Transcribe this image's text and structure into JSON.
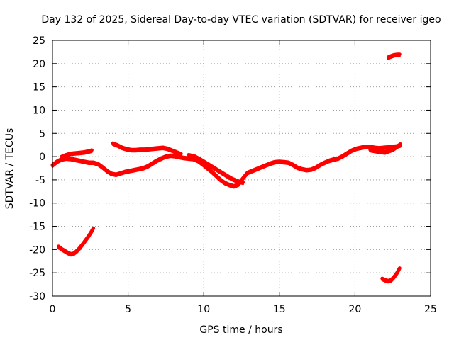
{
  "chart_data": {
    "type": "line",
    "title": "Day 132 of 2025, Sidereal Day-to-day VTEC variation (SDTVAR) for receiver igeo",
    "xlabel": "GPS time / hours",
    "ylabel": "SDTVAR / TECUs",
    "xlim": [
      0,
      25
    ],
    "ylim": [
      -30,
      25
    ],
    "x_ticks": [
      0,
      5,
      10,
      15,
      20,
      25
    ],
    "y_ticks": [
      25,
      20,
      15,
      10,
      5,
      0,
      -5,
      -10,
      -15,
      -20,
      -25,
      -30
    ],
    "grid": true,
    "series_color": "#ff0000",
    "series": [
      {
        "name": "main-trace",
        "x": [
          0.0,
          0.3,
          0.6,
          0.9,
          1.2,
          1.5,
          1.8,
          2.1,
          2.4,
          2.7,
          3.0,
          3.3,
          3.6,
          3.9,
          4.2,
          4.5,
          4.8,
          5.1,
          5.4,
          5.7,
          6.0,
          6.3,
          6.6,
          6.9,
          7.2,
          7.5,
          7.8,
          8.1,
          8.4,
          8.7,
          9.0,
          9.3,
          9.6,
          9.9,
          10.2,
          10.5,
          10.8,
          11.1,
          11.4,
          11.7,
          12.0,
          12.3,
          12.6,
          12.9,
          13.2,
          13.5,
          13.8,
          14.1,
          14.4,
          14.7,
          15.0,
          15.3,
          15.6,
          15.9,
          16.2,
          16.5,
          16.8,
          17.1,
          17.4,
          17.7,
          18.0,
          18.3,
          18.6,
          18.9,
          19.2,
          19.5,
          19.8,
          20.1,
          20.4,
          20.7,
          21.0,
          21.3,
          21.6,
          21.9,
          22.2,
          22.5,
          22.8,
          23.0
        ],
        "y": [
          -1.8,
          -1.0,
          -0.5,
          -0.3,
          -0.4,
          -0.6,
          -0.8,
          -1.0,
          -1.2,
          -1.2,
          -1.5,
          -2.2,
          -3.0,
          -3.6,
          -3.8,
          -3.5,
          -3.2,
          -3.0,
          -2.8,
          -2.6,
          -2.4,
          -2.0,
          -1.4,
          -0.8,
          -0.3,
          0.1,
          0.3,
          0.2,
          0.0,
          -0.2,
          -0.3,
          -0.4,
          -0.8,
          -1.5,
          -2.3,
          -3.1,
          -4.0,
          -4.9,
          -5.6,
          -6.0,
          -6.3,
          -5.9,
          -4.6,
          -3.4,
          -3.0,
          -2.6,
          -2.2,
          -1.8,
          -1.4,
          -1.1,
          -1.0,
          -1.1,
          -1.2,
          -1.7,
          -2.3,
          -2.6,
          -2.8,
          -2.7,
          -2.3,
          -1.7,
          -1.2,
          -0.8,
          -0.5,
          -0.3,
          0.2,
          0.8,
          1.4,
          1.8,
          2.0,
          2.2,
          2.2,
          2.0,
          1.9,
          2.0,
          2.1,
          2.2,
          2.3,
          2.5
        ]
      },
      {
        "name": "early-upper-branch",
        "x": [
          0.6,
          0.9,
          1.2,
          1.5,
          1.8,
          2.1,
          2.4,
          2.6
        ],
        "y": [
          0.0,
          0.4,
          0.7,
          0.8,
          0.9,
          1.0,
          1.2,
          1.4
        ]
      },
      {
        "name": "midday-upper-segment",
        "x": [
          4.0,
          4.3,
          4.6,
          4.9,
          5.2,
          5.5,
          5.8,
          6.1,
          6.4,
          6.7,
          7.0,
          7.3,
          7.6,
          7.9,
          8.2,
          8.5
        ],
        "y": [
          2.9,
          2.5,
          2.0,
          1.7,
          1.5,
          1.5,
          1.6,
          1.6,
          1.7,
          1.8,
          1.9,
          2.0,
          1.8,
          1.4,
          1.0,
          0.6
        ]
      },
      {
        "name": "evening-parallel-branch",
        "x": [
          9.0,
          9.4,
          9.8,
          10.2,
          10.6,
          11.0,
          11.4,
          11.8,
          12.2,
          12.6
        ],
        "y": [
          0.4,
          0.1,
          -0.6,
          -1.4,
          -2.2,
          -3.0,
          -3.8,
          -4.6,
          -5.2,
          -5.5
        ]
      },
      {
        "name": "late-branch",
        "x": [
          21.0,
          21.5,
          22.0,
          22.5,
          23.0
        ],
        "y": [
          1.5,
          1.2,
          1.0,
          1.6,
          2.7
        ]
      },
      {
        "name": "early-negative-arc",
        "x": [
          0.4,
          0.6,
          0.8,
          1.0,
          1.2,
          1.4,
          1.6,
          1.8,
          2.0,
          2.2,
          2.4,
          2.6,
          2.7
        ],
        "y": [
          -19.3,
          -19.8,
          -20.2,
          -20.6,
          -20.9,
          -20.8,
          -20.3,
          -19.6,
          -18.8,
          -17.9,
          -17.0,
          -16.0,
          -15.4
        ]
      },
      {
        "name": "late-negative-arc",
        "x": [
          21.8,
          22.0,
          22.2,
          22.4,
          22.6,
          22.8,
          22.95
        ],
        "y": [
          -26.2,
          -26.5,
          -26.7,
          -26.5,
          -25.8,
          -24.9,
          -24.0
        ]
      },
      {
        "name": "late-high-segment",
        "x": [
          22.2,
          22.4,
          22.6,
          22.8,
          22.95
        ],
        "y": [
          21.4,
          21.7,
          21.9,
          22.0,
          22.0
        ]
      }
    ]
  }
}
